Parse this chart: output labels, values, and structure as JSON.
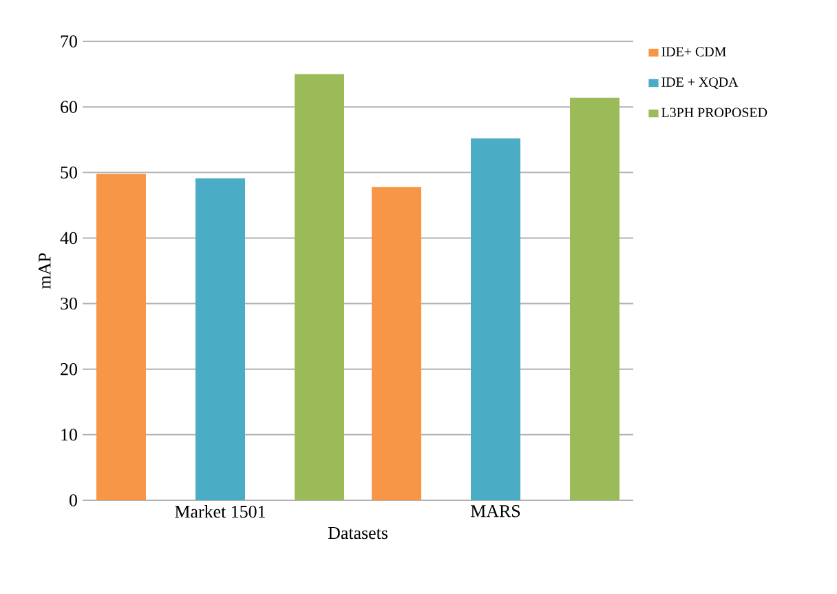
{
  "chart_data": {
    "type": "bar",
    "xlabel": "Datasets",
    "ylabel": "mAP",
    "categories": [
      "Market 1501",
      "MARS"
    ],
    "series": [
      {
        "name": "IDE+ CDM",
        "color": "#f79646",
        "values": [
          49.8,
          47.8
        ]
      },
      {
        "name": "IDE + XQDA",
        "color": "#4bacc6",
        "values": [
          49.1,
          55.2
        ]
      },
      {
        "name": "L3PH PROPOSED",
        "color": "#9bbb59",
        "values": [
          65.0,
          61.4
        ]
      }
    ],
    "ylim": [
      0,
      70
    ],
    "yticks": [
      0,
      10,
      20,
      30,
      40,
      50,
      60,
      70
    ],
    "grid": "y",
    "legend": "top right"
  }
}
